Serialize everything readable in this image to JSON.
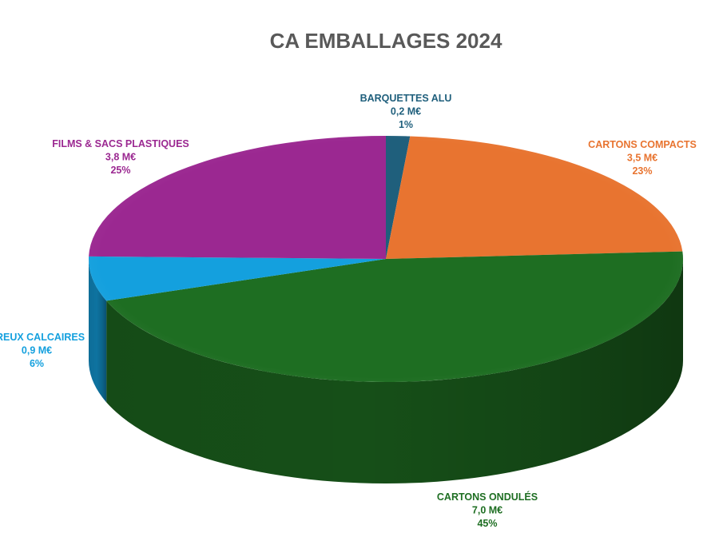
{
  "chart_data": {
    "type": "pie",
    "title": "CA EMBALLAGES 2024",
    "three_d": true,
    "slices": [
      {
        "name": "BARQUETTES ALU",
        "value_label": "0,2 M€",
        "value": 0.2,
        "percent_label": "1%",
        "percent": 1,
        "color": "#1f5f7c"
      },
      {
        "name": "CARTONS COMPACTS",
        "value_label": "3,5 M€",
        "value": 3.5,
        "percent_label": "23%",
        "percent": 23,
        "color": "#e87430"
      },
      {
        "name": "CARTONS ONDULÉS",
        "value_label": "7,0 M€",
        "value": 7.0,
        "percent_label": "45%",
        "percent": 45,
        "color": "#1e6e22"
      },
      {
        "name": "CREUX CALCAIRES",
        "value_label": "0,9 M€",
        "value": 0.9,
        "percent_label": "6%",
        "percent": 6,
        "color": "#14a0de"
      },
      {
        "name": "FILMS & SACS PLASTIQUES",
        "value_label": "3,8 M€",
        "value": 3.8,
        "percent_label": "25%",
        "percent": 25,
        "color": "#9b2891"
      }
    ]
  }
}
